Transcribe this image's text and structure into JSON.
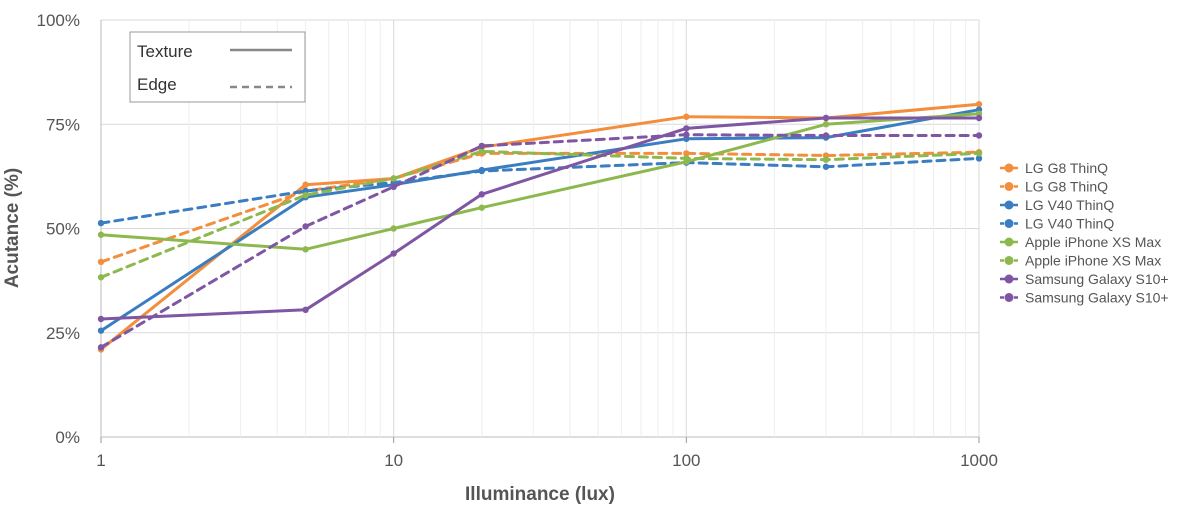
{
  "chart_data": {
    "type": "line",
    "title": "",
    "xlabel": "Illuminance (lux)",
    "ylabel": "Acutance (%)",
    "x_scale": "log",
    "xlim": [
      1,
      1000
    ],
    "ylim": [
      0,
      100
    ],
    "x_ticks": [
      "1",
      "10",
      "100",
      "1000"
    ],
    "y_ticks": [
      "0%",
      "25%",
      "50%",
      "75%",
      "100%"
    ],
    "grid": true,
    "style_legend": [
      {
        "label": "Texture",
        "dash": "solid"
      },
      {
        "label": "Edge",
        "dash": "dashed"
      }
    ],
    "legend_position": "right",
    "x": [
      1,
      5,
      10,
      20,
      100,
      300,
      1000
    ],
    "series": [
      {
        "name": "LG G8 ThinQ",
        "kind": "Texture",
        "color": "#F28E3C",
        "values": [
          21,
          60.5,
          62,
          69.5,
          76.8,
          76.5,
          79.8
        ]
      },
      {
        "name": "LG G8 ThinQ",
        "kind": "Edge",
        "color": "#F28E3C",
        "values": [
          42,
          59,
          62,
          68,
          68,
          67.5,
          68.3
        ]
      },
      {
        "name": "LG V40 ThinQ",
        "kind": "Texture",
        "color": "#3A7DC0",
        "values": [
          25.5,
          57.5,
          60.5,
          64,
          71.5,
          71.8,
          78.5
        ]
      },
      {
        "name": "LG V40 ThinQ",
        "kind": "Edge",
        "color": "#3A7DC0",
        "values": [
          51.3,
          59,
          61,
          63.8,
          65.8,
          64.8,
          66.8
        ]
      },
      {
        "name": "Apple iPhone XS Max",
        "kind": "Texture",
        "color": "#8DB84E",
        "values": [
          48.5,
          45,
          50,
          55,
          66,
          75,
          77.5
        ]
      },
      {
        "name": "Apple iPhone XS Max",
        "kind": "Edge",
        "color": "#8DB84E",
        "values": [
          38.3,
          58,
          62,
          68.5,
          66.8,
          66.5,
          68
        ]
      },
      {
        "name": "Samsung Galaxy S10+",
        "kind": "Texture",
        "color": "#7E56A3",
        "values": [
          28.3,
          30.5,
          44,
          58.2,
          74,
          76.5,
          76.5
        ]
      },
      {
        "name": "Samsung Galaxy S10+",
        "kind": "Edge",
        "color": "#7E56A3",
        "values": [
          21.5,
          50.5,
          60,
          69.8,
          72.5,
          72.3,
          72.3
        ]
      }
    ]
  }
}
